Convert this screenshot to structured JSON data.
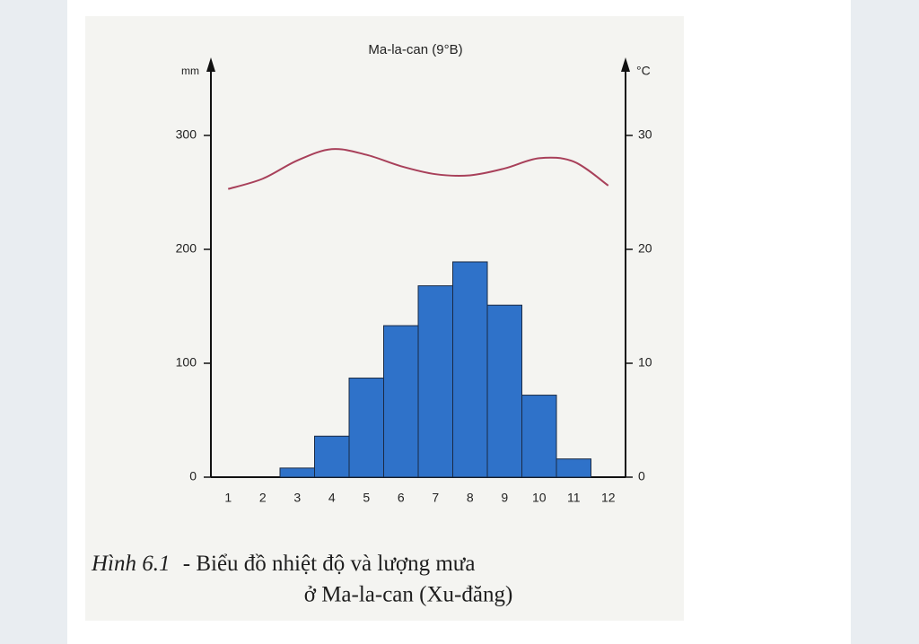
{
  "chart_data": {
    "type": "bar_line",
    "title": "Ma-la-can (9°B)",
    "y_label": "mm",
    "y2_label": "°C",
    "categories": [
      "1",
      "2",
      "3",
      "4",
      "5",
      "6",
      "7",
      "8",
      "9",
      "10",
      "11",
      "12"
    ],
    "series": [
      {
        "type": "bar",
        "color": "#2f72c9",
        "values": [
          0,
          0,
          8,
          36,
          87,
          133,
          168,
          189,
          151,
          72,
          16,
          0
        ]
      },
      {
        "type": "line",
        "color": "#a8405a",
        "axis": "y2",
        "values": [
          25.3,
          26.2,
          27.8,
          28.8,
          28.3,
          27.3,
          26.6,
          26.5,
          27.1,
          28.0,
          27.7,
          25.6
        ]
      }
    ],
    "ylim": [
      0,
      360
    ],
    "yticks": [
      0,
      100,
      200,
      300
    ],
    "y2lim": [
      0,
      36
    ],
    "y2ticks": [
      0,
      10,
      20,
      30
    ],
    "grid": false,
    "caption_label": "Hình 6.1",
    "caption_lines": [
      "- Biểu đồ nhiệt độ và lượng mưa",
      "ở Ma-la-can (Xu-đăng)"
    ]
  }
}
